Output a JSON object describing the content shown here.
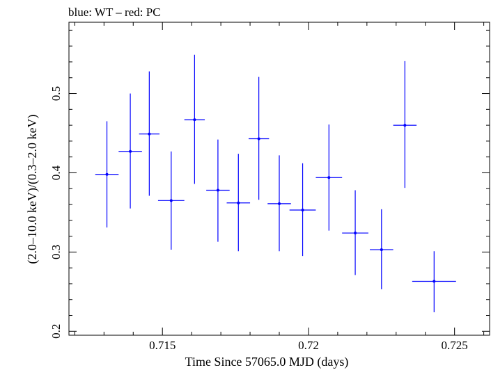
{
  "chart_data": {
    "type": "scatter",
    "title": "blue: WT – red: PC",
    "xlabel": "Time Since 57065.0 MJD (days)",
    "ylabel": "(2.0–10.0 keV)/(0.3–2.0 keV)",
    "xlim": [
      0.7118,
      0.7262
    ],
    "ylim": [
      0.195,
      0.59
    ],
    "xticks": [
      0.715,
      0.72,
      0.725
    ],
    "xtick_labels": [
      "0.715",
      "0.72",
      "0.725"
    ],
    "yticks": [
      0.2,
      0.3,
      0.4,
      0.5
    ],
    "ytick_labels": [
      "0.2",
      "0.3",
      "0.4",
      "0.5"
    ],
    "grid": false,
    "series": [
      {
        "color": "#0000ff",
        "points": [
          {
            "x": 0.7131,
            "y": 0.398,
            "xerr": 0.0004,
            "yerr_low": 0.067,
            "yerr_high": 0.067
          },
          {
            "x": 0.7139,
            "y": 0.427,
            "xerr": 0.0004,
            "yerr_low": 0.072,
            "yerr_high": 0.073
          },
          {
            "x": 0.71455,
            "y": 0.449,
            "xerr": 0.00035,
            "yerr_low": 0.078,
            "yerr_high": 0.079
          },
          {
            "x": 0.7153,
            "y": 0.365,
            "xerr": 0.00045,
            "yerr_low": 0.062,
            "yerr_high": 0.062
          },
          {
            "x": 0.7161,
            "y": 0.467,
            "xerr": 0.00035,
            "yerr_low": 0.081,
            "yerr_high": 0.082
          },
          {
            "x": 0.7169,
            "y": 0.378,
            "xerr": 0.0004,
            "yerr_low": 0.065,
            "yerr_high": 0.064
          },
          {
            "x": 0.7176,
            "y": 0.362,
            "xerr": 0.0004,
            "yerr_low": 0.061,
            "yerr_high": 0.062
          },
          {
            "x": 0.7183,
            "y": 0.443,
            "xerr": 0.00035,
            "yerr_low": 0.077,
            "yerr_high": 0.078
          },
          {
            "x": 0.719,
            "y": 0.361,
            "xerr": 0.0004,
            "yerr_low": 0.06,
            "yerr_high": 0.061
          },
          {
            "x": 0.7198,
            "y": 0.353,
            "xerr": 0.00045,
            "yerr_low": 0.058,
            "yerr_high": 0.059
          },
          {
            "x": 0.7207,
            "y": 0.394,
            "xerr": 0.00045,
            "yerr_low": 0.067,
            "yerr_high": 0.067
          },
          {
            "x": 0.7216,
            "y": 0.324,
            "xerr": 0.00045,
            "yerr_low": 0.053,
            "yerr_high": 0.054
          },
          {
            "x": 0.7225,
            "y": 0.303,
            "xerr": 0.0004,
            "yerr_low": 0.05,
            "yerr_high": 0.051
          },
          {
            "x": 0.7233,
            "y": 0.46,
            "xerr": 0.0004,
            "yerr_low": 0.079,
            "yerr_high": 0.081
          },
          {
            "x": 0.7243,
            "y": 0.263,
            "xerr": 0.00075,
            "yerr_low": 0.039,
            "yerr_high": 0.038
          }
        ]
      }
    ]
  }
}
